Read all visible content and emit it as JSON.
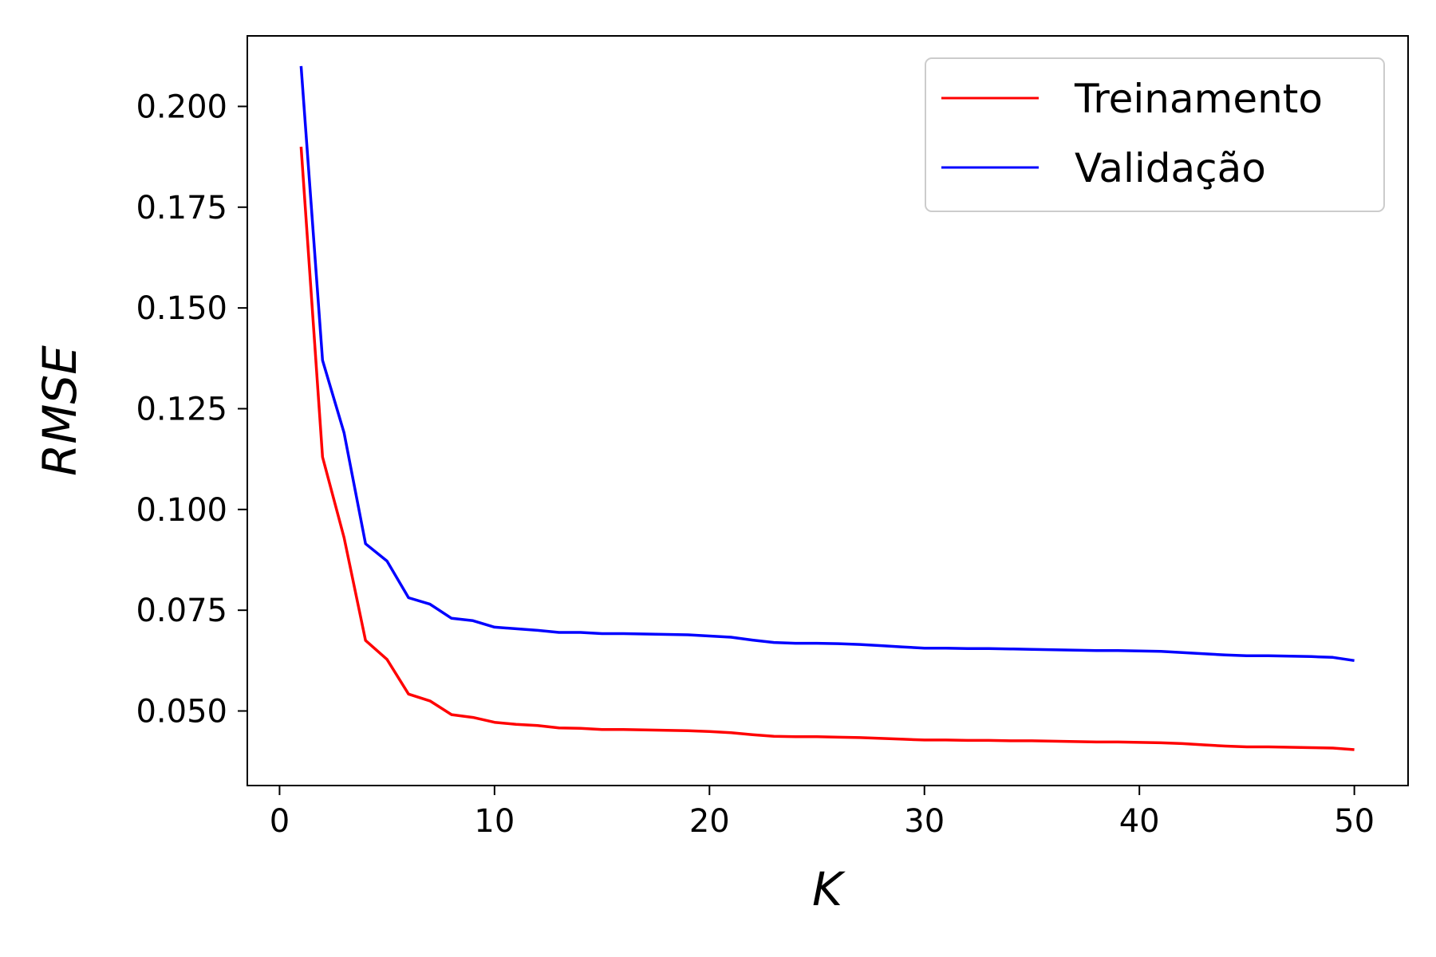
{
  "chart_data": {
    "type": "line",
    "xlabel": "K",
    "ylabel": "RMSE",
    "xlim": [
      -1.5,
      52.5
    ],
    "ylim": [
      0.0315,
      0.2175
    ],
    "xticks": [
      "0",
      "10",
      "20",
      "30",
      "40",
      "50"
    ],
    "yticks": [
      "0.050",
      "0.075",
      "0.100",
      "0.125",
      "0.150",
      "0.175",
      "0.200"
    ],
    "legend_position": "top-right",
    "grid": false,
    "series": [
      {
        "name": "Treinamento",
        "color": "#ff0000",
        "x": [
          1,
          2,
          3,
          4,
          5,
          6,
          7,
          8,
          9,
          10,
          11,
          12,
          13,
          14,
          15,
          16,
          17,
          18,
          19,
          20,
          21,
          22,
          23,
          24,
          25,
          26,
          27,
          28,
          29,
          30,
          31,
          32,
          33,
          34,
          35,
          36,
          37,
          38,
          39,
          40,
          41,
          42,
          43,
          44,
          45,
          46,
          47,
          48,
          49,
          50
        ],
        "y": [
          0.19,
          0.113,
          0.093,
          0.0675,
          0.0628,
          0.0542,
          0.0525,
          0.0491,
          0.0484,
          0.0472,
          0.0467,
          0.0464,
          0.0458,
          0.0457,
          0.0454,
          0.0454,
          0.0453,
          0.0452,
          0.0451,
          0.0449,
          0.0446,
          0.0441,
          0.0437,
          0.0436,
          0.0436,
          0.0435,
          0.0434,
          0.0432,
          0.043,
          0.0428,
          0.0428,
          0.0427,
          0.0427,
          0.0426,
          0.0426,
          0.0425,
          0.0424,
          0.0423,
          0.0423,
          0.0422,
          0.0421,
          0.0419,
          0.0416,
          0.0413,
          0.0411,
          0.0411,
          0.041,
          0.0409,
          0.0408,
          0.0404
        ]
      },
      {
        "name": "Validação",
        "color": "#0000ff",
        "x": [
          1,
          2,
          3,
          4,
          5,
          6,
          7,
          8,
          9,
          10,
          11,
          12,
          13,
          14,
          15,
          16,
          17,
          18,
          19,
          20,
          21,
          22,
          23,
          24,
          25,
          26,
          27,
          28,
          29,
          30,
          31,
          32,
          33,
          34,
          35,
          36,
          37,
          38,
          39,
          40,
          41,
          42,
          43,
          44,
          45,
          46,
          47,
          48,
          49,
          50
        ],
        "y": [
          0.21,
          0.137,
          0.119,
          0.0915,
          0.0872,
          0.0781,
          0.0765,
          0.073,
          0.0724,
          0.0708,
          0.0704,
          0.07,
          0.0695,
          0.0695,
          0.0692,
          0.0692,
          0.0691,
          0.069,
          0.0689,
          0.0686,
          0.0683,
          0.0676,
          0.067,
          0.0668,
          0.0668,
          0.0667,
          0.0665,
          0.0662,
          0.0659,
          0.0656,
          0.0656,
          0.0655,
          0.0655,
          0.0654,
          0.0653,
          0.0652,
          0.0651,
          0.065,
          0.065,
          0.0649,
          0.0648,
          0.0645,
          0.0642,
          0.0639,
          0.0637,
          0.0637,
          0.0636,
          0.0635,
          0.0633,
          0.0625
        ]
      }
    ]
  }
}
